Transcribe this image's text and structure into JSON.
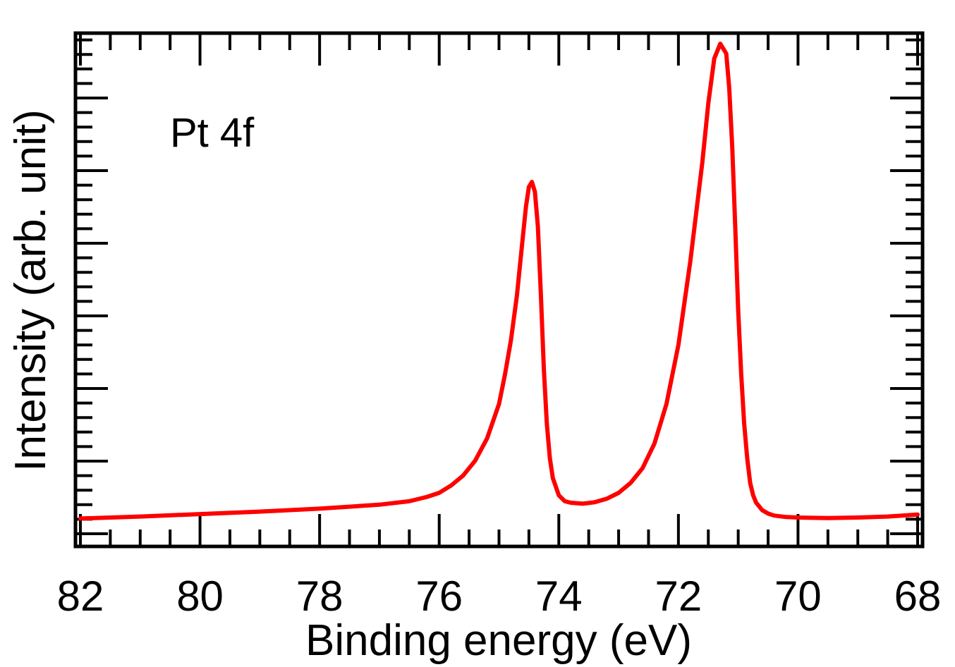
{
  "chart_data": {
    "type": "line",
    "title": "",
    "xlabel": "Binding energy (eV)",
    "ylabel": "Intensity (arb. unit)",
    "annotation": "Pt 4f",
    "x_reversed": true,
    "xlim": [
      82,
      68
    ],
    "ylim": [
      0,
      1.0
    ],
    "x_tick_labels": [
      "82",
      "80",
      "78",
      "76",
      "74",
      "72",
      "70",
      "68"
    ],
    "x_tick_values": [
      82,
      80,
      78,
      76,
      74,
      72,
      70,
      68
    ],
    "y_tick_labels_shown": false,
    "grid": false,
    "line_color": "#ff0000",
    "series": [
      {
        "x": [
          82.0,
          81.0,
          80.0,
          79.0,
          78.0,
          77.0,
          76.5,
          76.2,
          76.0,
          75.8,
          75.6,
          75.4,
          75.2,
          75.0,
          74.9,
          74.8,
          74.7,
          74.6,
          74.55,
          74.5,
          74.45,
          74.4,
          74.35,
          74.3,
          74.25,
          74.2,
          74.15,
          74.1,
          74.0,
          73.9,
          73.8,
          73.6,
          73.4,
          73.2,
          73.0,
          72.8,
          72.6,
          72.4,
          72.2,
          72.0,
          71.8,
          71.6,
          71.5,
          71.4,
          71.3,
          71.2,
          71.15,
          71.1,
          71.05,
          71.0,
          70.95,
          70.9,
          70.85,
          70.8,
          70.75,
          70.7,
          70.6,
          70.5,
          70.4,
          70.2,
          70.0,
          69.5,
          69.0,
          68.5,
          68.0
        ],
        "y": [
          0.028,
          0.032,
          0.037,
          0.042,
          0.048,
          0.056,
          0.063,
          0.072,
          0.08,
          0.095,
          0.115,
          0.145,
          0.19,
          0.26,
          0.32,
          0.39,
          0.48,
          0.6,
          0.66,
          0.7,
          0.71,
          0.69,
          0.62,
          0.48,
          0.33,
          0.22,
          0.15,
          0.11,
          0.075,
          0.063,
          0.06,
          0.058,
          0.061,
          0.068,
          0.08,
          0.1,
          0.13,
          0.18,
          0.26,
          0.38,
          0.55,
          0.75,
          0.87,
          0.96,
          0.99,
          0.97,
          0.9,
          0.78,
          0.62,
          0.45,
          0.32,
          0.22,
          0.15,
          0.1,
          0.075,
          0.06,
          0.045,
          0.038,
          0.034,
          0.031,
          0.03,
          0.029,
          0.03,
          0.032,
          0.036
        ]
      }
    ]
  }
}
